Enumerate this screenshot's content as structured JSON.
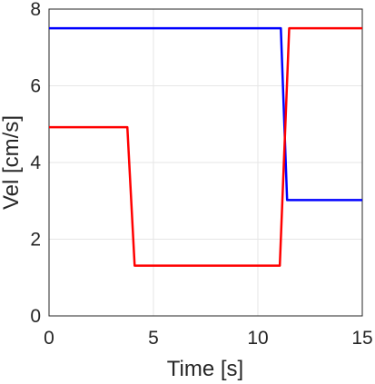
{
  "chart_data": {
    "type": "line",
    "title": "",
    "xlabel": "Time [s]",
    "ylabel": "Vel [cm/s]",
    "xlim": [
      0,
      15
    ],
    "ylim": [
      0,
      8
    ],
    "x_ticks": [
      0,
      5,
      10,
      15
    ],
    "y_ticks": [
      0,
      2,
      4,
      6,
      8
    ],
    "grid": true,
    "series": [
      {
        "color": "#0000ff",
        "x": [
          0,
          11.1,
          11.4,
          15
        ],
        "y": [
          7.5,
          7.5,
          3.02,
          3.02
        ]
      },
      {
        "color": "#ff0000",
        "x": [
          0,
          3.75,
          4.1,
          11.05,
          11.5,
          15
        ],
        "y": [
          4.92,
          4.92,
          1.31,
          1.31,
          7.5,
          7.5
        ]
      }
    ]
  }
}
